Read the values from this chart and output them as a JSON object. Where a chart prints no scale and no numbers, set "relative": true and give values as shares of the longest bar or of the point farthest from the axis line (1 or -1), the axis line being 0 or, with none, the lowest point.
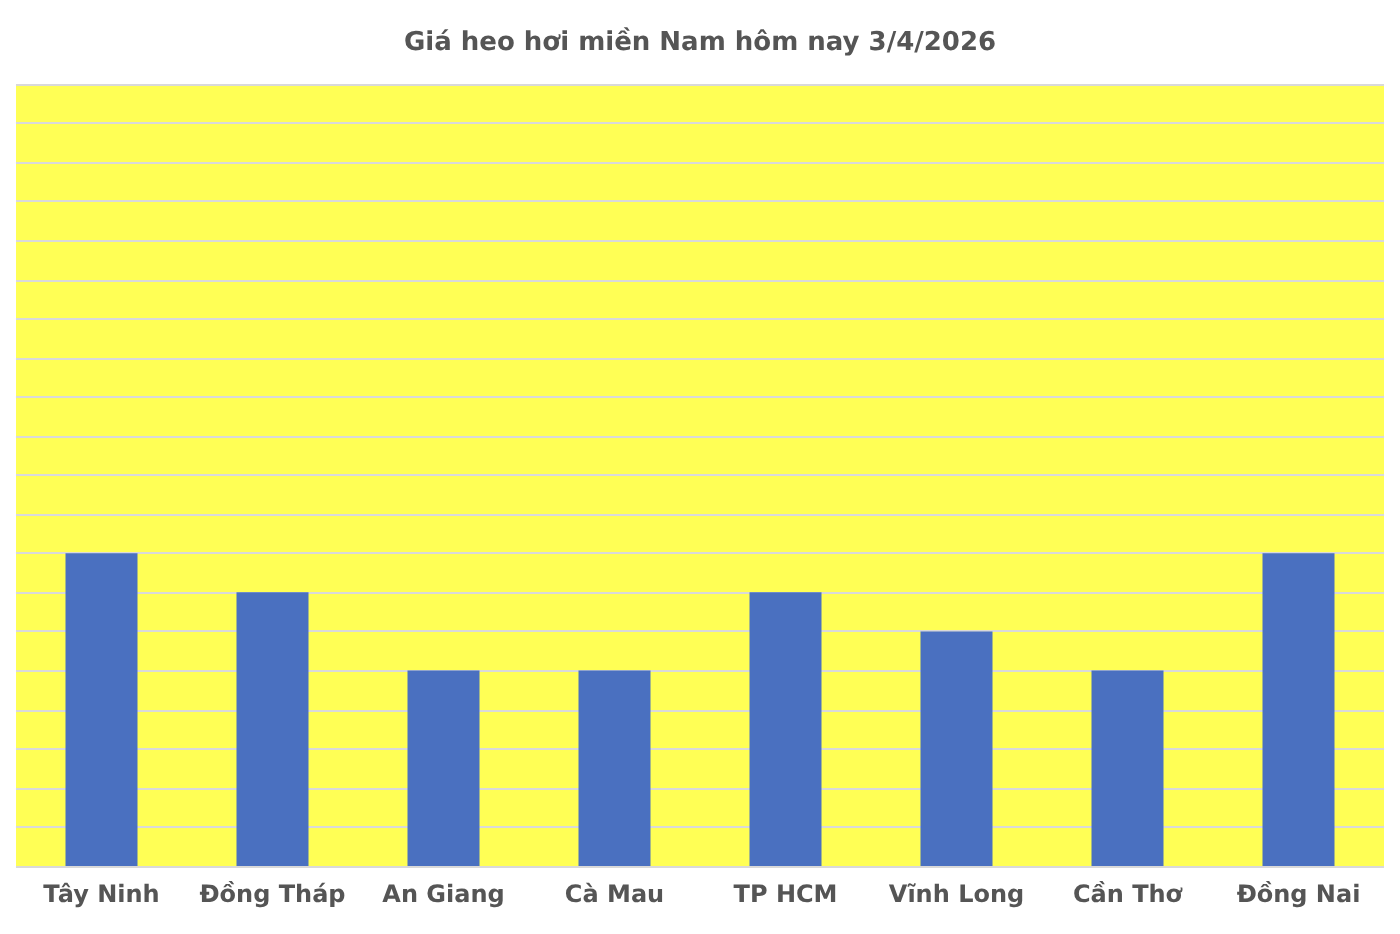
{
  "chart_data": {
    "type": "bar",
    "title": "Giá heo hơi miền Nam hôm nay 3/4/2026",
    "categories": [
      "Tây Ninh",
      "Đồng Tháp",
      "An Giang",
      "Cà Mau",
      "TP HCM",
      "Vĩnh Long",
      "Cần Thơ",
      "Đồng Nai"
    ],
    "values": [
      1,
      0.875,
      0.625,
      0.625,
      0.875,
      0.75,
      0.625,
      1
    ],
    "color": "#4a70c0",
    "relative": true,
    "grid": "y"
  }
}
